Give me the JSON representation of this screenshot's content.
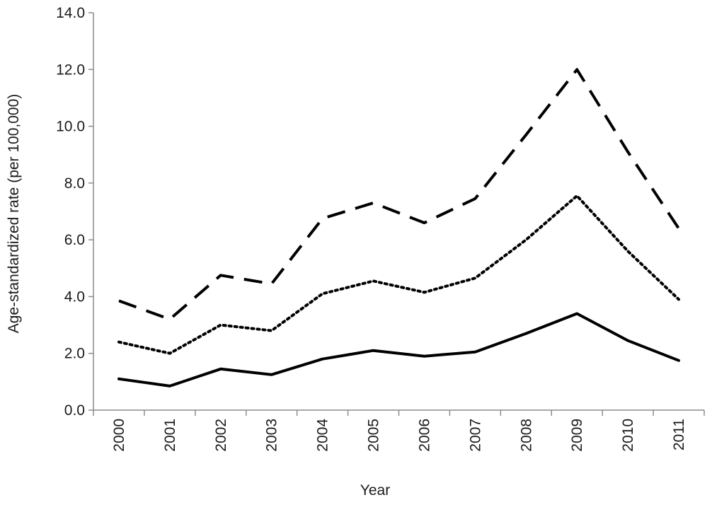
{
  "chart_data": {
    "type": "line",
    "title": "",
    "xlabel": "Year",
    "ylabel": "Age-standardized rate  (per 100,000)",
    "categories": [
      "2000",
      "2001",
      "2002",
      "2003",
      "2004",
      "2005",
      "2006",
      "2007",
      "2008",
      "2009",
      "2010",
      "2011"
    ],
    "ylim": [
      0,
      14
    ],
    "yticks": [
      "0.0",
      "2.0",
      "4.0",
      "6.0",
      "8.0",
      "10.0",
      "12.0",
      "14.0"
    ],
    "grid": false,
    "legend": "none",
    "series": [
      {
        "style": "dashed",
        "color": "#000000",
        "values": [
          3.85,
          3.2,
          4.75,
          4.45,
          6.75,
          7.3,
          6.6,
          7.45,
          9.7,
          12.0,
          9.1,
          6.4
        ]
      },
      {
        "style": "dotted",
        "color": "#000000",
        "values": [
          2.4,
          2.0,
          3.0,
          2.8,
          4.1,
          4.55,
          4.15,
          4.65,
          6.0,
          7.55,
          5.6,
          3.9
        ]
      },
      {
        "style": "solid",
        "color": "#000000",
        "values": [
          1.1,
          0.85,
          1.45,
          1.25,
          1.8,
          2.1,
          1.9,
          2.05,
          2.7,
          3.4,
          2.45,
          1.75
        ]
      }
    ]
  }
}
